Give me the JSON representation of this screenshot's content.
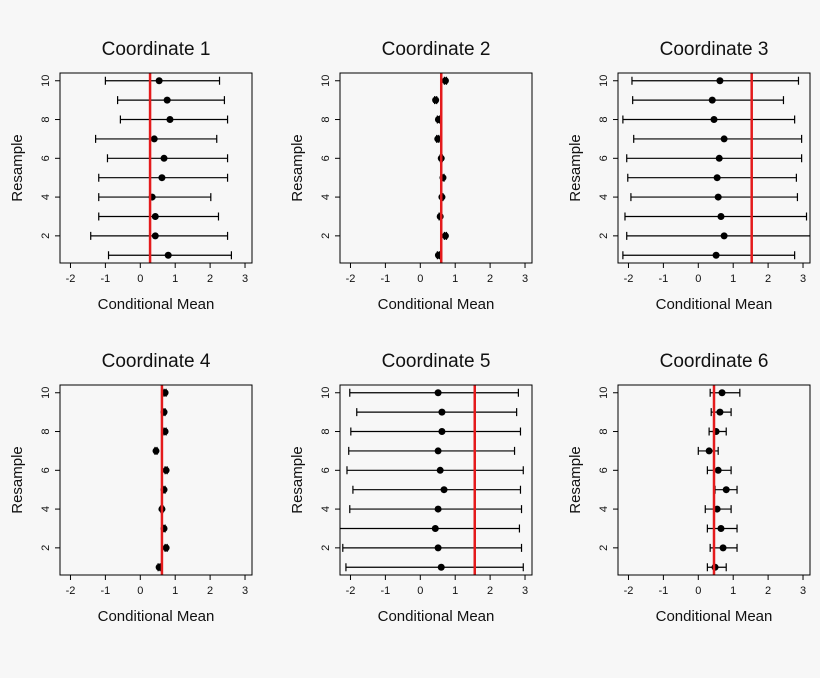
{
  "chart_data": [
    {
      "type": "errorbar",
      "title": "Coordinate 1",
      "xlabel": "Conditional Mean",
      "ylabel": "Resample",
      "y": [
        1,
        2,
        3,
        4,
        5,
        6,
        7,
        8,
        9,
        10
      ],
      "values": [
        0.8,
        0.43,
        0.43,
        0.34,
        0.62,
        0.68,
        0.4,
        0.85,
        0.77,
        0.54
      ],
      "lower": [
        -0.91,
        -1.42,
        -1.19,
        -1.19,
        -1.19,
        -0.94,
        -1.28,
        -0.57,
        -0.65,
        -1.0
      ],
      "upper": [
        2.61,
        2.5,
        2.24,
        2.02,
        2.5,
        2.5,
        2.19,
        2.5,
        2.41,
        2.27
      ],
      "ref_line": 0.28,
      "color": "#000000",
      "ref_color": "#e41a1c",
      "xlim": [
        -2.3,
        3.2
      ],
      "ylim": [
        0.6,
        10.4
      ],
      "xticks": [
        -2,
        -1,
        0,
        1,
        2,
        3
      ],
      "yticks": [
        2,
        4,
        6,
        8,
        10
      ]
    },
    {
      "type": "errorbar",
      "title": "Coordinate 2",
      "xlabel": "Conditional Mean",
      "ylabel": "Resample",
      "y": [
        1,
        2,
        3,
        4,
        5,
        6,
        7,
        8,
        9,
        10
      ],
      "values": [
        0.52,
        0.72,
        0.57,
        0.62,
        0.65,
        0.6,
        0.5,
        0.52,
        0.44,
        0.72
      ],
      "lower": [
        0.49,
        0.69,
        0.54,
        0.59,
        0.62,
        0.57,
        0.47,
        0.49,
        0.41,
        0.69
      ],
      "upper": [
        0.55,
        0.75,
        0.6,
        0.65,
        0.68,
        0.63,
        0.53,
        0.55,
        0.47,
        0.75
      ],
      "ref_line": 0.6,
      "color": "#000000",
      "ref_color": "#e41a1c",
      "xlim": [
        -2.3,
        3.2
      ],
      "ylim": [
        0.6,
        10.4
      ],
      "xticks": [
        -2,
        -1,
        0,
        1,
        2,
        3
      ],
      "yticks": [
        2,
        4,
        6,
        8,
        10
      ]
    },
    {
      "type": "errorbar",
      "title": "Coordinate 3",
      "xlabel": "Conditional Mean",
      "ylabel": "Resample",
      "y": [
        1,
        2,
        3,
        4,
        5,
        6,
        7,
        8,
        9,
        10
      ],
      "values": [
        0.51,
        0.74,
        0.65,
        0.57,
        0.54,
        0.6,
        0.74,
        0.45,
        0.4,
        0.62
      ],
      "lower": [
        -2.16,
        -2.05,
        -2.1,
        -1.93,
        -2.02,
        -2.05,
        -1.85,
        -2.16,
        -1.88,
        -1.9
      ],
      "upper": [
        2.76,
        3.3,
        3.1,
        2.84,
        2.81,
        2.96,
        2.96,
        2.76,
        2.44,
        2.87
      ],
      "ref_line": 1.53,
      "color": "#000000",
      "ref_color": "#e41a1c",
      "xlim": [
        -2.3,
        3.2
      ],
      "ylim": [
        0.6,
        10.4
      ],
      "xticks": [
        -2,
        -1,
        0,
        1,
        2,
        3
      ],
      "yticks": [
        2,
        4,
        6,
        8,
        10
      ]
    },
    {
      "type": "errorbar",
      "title": "Coordinate 4",
      "xlabel": "Conditional Mean",
      "ylabel": "Resample",
      "y": [
        1,
        2,
        3,
        4,
        5,
        6,
        7,
        8,
        9,
        10
      ],
      "values": [
        0.54,
        0.74,
        0.68,
        0.62,
        0.68,
        0.74,
        0.45,
        0.71,
        0.68,
        0.71
      ],
      "lower": [
        0.51,
        0.71,
        0.65,
        0.59,
        0.65,
        0.71,
        0.42,
        0.68,
        0.65,
        0.68
      ],
      "upper": [
        0.57,
        0.77,
        0.71,
        0.65,
        0.71,
        0.77,
        0.48,
        0.74,
        0.71,
        0.74
      ],
      "ref_line": 0.62,
      "color": "#000000",
      "ref_color": "#e41a1c",
      "xlim": [
        -2.3,
        3.2
      ],
      "ylim": [
        0.6,
        10.4
      ],
      "xticks": [
        -2,
        -1,
        0,
        1,
        2,
        3
      ],
      "yticks": [
        2,
        4,
        6,
        8,
        10
      ]
    },
    {
      "type": "errorbar",
      "title": "Coordinate 5",
      "xlabel": "Conditional Mean",
      "ylabel": "Resample",
      "y": [
        1,
        2,
        3,
        4,
        5,
        6,
        7,
        8,
        9,
        10
      ],
      "values": [
        0.6,
        0.51,
        0.43,
        0.51,
        0.68,
        0.57,
        0.51,
        0.62,
        0.62,
        0.51
      ],
      "lower": [
        -2.13,
        -2.22,
        -3.1,
        -2.02,
        -1.93,
        -2.1,
        -2.05,
        -1.99,
        -1.82,
        -2.02
      ],
      "upper": [
        2.95,
        2.9,
        2.84,
        2.9,
        2.87,
        2.95,
        2.7,
        2.87,
        2.76,
        2.81
      ],
      "ref_line": 1.56,
      "color": "#000000",
      "ref_color": "#e41a1c",
      "xlim": [
        -2.3,
        3.2
      ],
      "ylim": [
        0.6,
        10.4
      ],
      "xticks": [
        -2,
        -1,
        0,
        1,
        2,
        3
      ],
      "yticks": [
        2,
        4,
        6,
        8,
        10
      ]
    },
    {
      "type": "errorbar",
      "title": "Coordinate 6",
      "xlabel": "Conditional Mean",
      "ylabel": "Resample",
      "y": [
        1,
        2,
        3,
        4,
        5,
        6,
        7,
        8,
        9,
        10
      ],
      "values": [
        0.48,
        0.71,
        0.65,
        0.54,
        0.8,
        0.57,
        0.31,
        0.51,
        0.62,
        0.68
      ],
      "lower": [
        0.26,
        0.34,
        0.26,
        0.2,
        0.48,
        0.26,
        0.0,
        0.31,
        0.37,
        0.34
      ],
      "upper": [
        0.8,
        1.11,
        1.11,
        0.94,
        1.11,
        0.94,
        0.57,
        0.8,
        0.94,
        1.19
      ],
      "ref_line": 0.45,
      "color": "#000000",
      "ref_color": "#e41a1c",
      "xlim": [
        -2.3,
        3.2
      ],
      "ylim": [
        0.6,
        10.4
      ],
      "xticks": [
        -2,
        -1,
        0,
        1,
        2,
        3
      ],
      "yticks": [
        2,
        4,
        6,
        8,
        10
      ]
    }
  ]
}
